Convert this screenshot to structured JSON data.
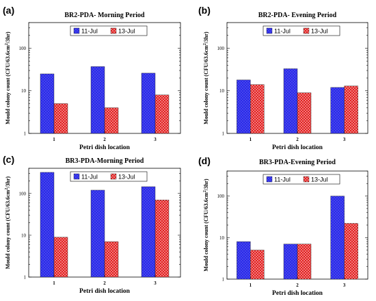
{
  "colors": {
    "series_1": "#2323e6",
    "series_2": "#e01c1c",
    "axis": "#000000",
    "background": "#ffffff"
  },
  "chart_data": [
    {
      "panel_label": "(a)",
      "type": "bar",
      "title": "BR2-PDA- Morning Period",
      "xlabel": "Petri dish location",
      "ylabel": "Mould colony count (CFU/63.6cm²/3hr)",
      "y_scale": "log",
      "ylim": [
        1,
        400
      ],
      "y_ticks": [
        1,
        10,
        100
      ],
      "categories": [
        "1",
        "2",
        "3"
      ],
      "legend_position": "top-center",
      "series": [
        {
          "name": "11-Jul",
          "values": [
            25,
            37,
            26
          ]
        },
        {
          "name": "13-Jul",
          "values": [
            5,
            4,
            8
          ]
        }
      ]
    },
    {
      "panel_label": "(b)",
      "type": "bar",
      "title": "BR2-PDA- Evening Period",
      "xlabel": "Petri dish location",
      "ylabel": "Mould colony count (CFU/63.6cm²/3hr)",
      "y_scale": "log",
      "ylim": [
        1,
        400
      ],
      "y_ticks": [
        1,
        10,
        100
      ],
      "categories": [
        "1",
        "2",
        "3"
      ],
      "legend_position": "top-center",
      "series": [
        {
          "name": "11-Jul",
          "values": [
            18,
            33,
            12
          ]
        },
        {
          "name": "13-Jul",
          "values": [
            14,
            9,
            13
          ]
        }
      ]
    },
    {
      "panel_label": "(c)",
      "type": "bar",
      "title": "BR3-PDA-Morning Period",
      "xlabel": "Petri dish location",
      "ylabel": "Mould colony count (CFU/63.6cm²/3hr)",
      "y_scale": "log",
      "ylim": [
        1,
        400
      ],
      "y_ticks": [
        1,
        10,
        100
      ],
      "categories": [
        "1",
        "2",
        "3"
      ],
      "legend_position": "top-center",
      "series": [
        {
          "name": "11-Jul",
          "values": [
            320,
            120,
            145
          ]
        },
        {
          "name": "13-Jul",
          "values": [
            9,
            7,
            70
          ]
        }
      ]
    },
    {
      "panel_label": "(d)",
      "type": "bar",
      "title": "BR3-PDA-Evening Period",
      "xlabel": "Petri dish location",
      "ylabel": "Mould colony count (CFU/63.6cm²/3hr)",
      "y_scale": "log",
      "ylim": [
        1,
        400
      ],
      "y_ticks": [
        1,
        10,
        100
      ],
      "categories": [
        "1",
        "2",
        "3"
      ],
      "legend_position": "top-center",
      "series": [
        {
          "name": "11-Jul",
          "values": [
            8,
            7,
            100
          ]
        },
        {
          "name": "13-Jul",
          "values": [
            5,
            7,
            22
          ]
        }
      ]
    }
  ]
}
